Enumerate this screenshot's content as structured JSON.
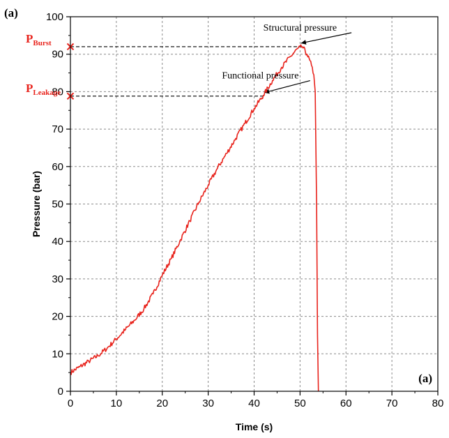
{
  "chart_data": {
    "type": "line",
    "panel_label": "(a)",
    "inner_label": "(a)",
    "xlabel": "Time (s)",
    "ylabel": "Pressure (bar)",
    "xlim": [
      0,
      80
    ],
    "ylim": [
      0,
      100
    ],
    "xticks": [
      0,
      10,
      20,
      30,
      40,
      50,
      60,
      70,
      80
    ],
    "yticks": [
      0,
      10,
      20,
      30,
      40,
      50,
      60,
      70,
      80,
      90,
      100
    ],
    "grid": true,
    "line_color": "#e8231c",
    "marker_color": "#e8231c",
    "series": [
      {
        "x": [
          0,
          2,
          4,
          6,
          8,
          10,
          12,
          14,
          16,
          18,
          20,
          22,
          24,
          26,
          28,
          30,
          32,
          34,
          36,
          38,
          40,
          42,
          44,
          46,
          48,
          49.5,
          50.5,
          51.5,
          52.5,
          53,
          53.3,
          53.6,
          53.8,
          54
        ],
        "y": [
          5,
          6.5,
          8,
          9.5,
          11.5,
          14,
          16.5,
          19,
          22,
          26,
          31,
          35.5,
          40.5,
          45.5,
          50.5,
          55,
          59.5,
          63.5,
          67.5,
          71.5,
          75.5,
          79,
          83,
          86.5,
          89.5,
          91.5,
          92,
          90,
          87,
          84.5,
          80,
          50,
          15,
          0
        ]
      }
    ],
    "reference_levels": [
      {
        "name_main": "P",
        "name_sub": "Burst",
        "y": 92,
        "x_end": 50.5,
        "label": "Structural pressure",
        "label_x": 42,
        "label_y": 96.3
      },
      {
        "name_main": "P",
        "name_sub": "Leakage",
        "y": 78.8,
        "x_end": 42.5,
        "label": "Functional pressure",
        "label_x": 33,
        "label_y": 83.5
      }
    ]
  }
}
